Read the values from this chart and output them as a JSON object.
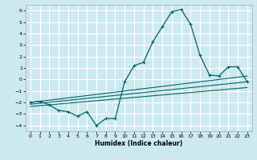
{
  "xlabel": "Humidex (Indice chaleur)",
  "ylabel": "",
  "xlim": [
    -0.5,
    23.5
  ],
  "ylim": [
    -4.5,
    6.5
  ],
  "yticks": [
    -4,
    -3,
    -2,
    -1,
    0,
    1,
    2,
    3,
    4,
    5,
    6
  ],
  "xticks": [
    0,
    1,
    2,
    3,
    4,
    5,
    6,
    7,
    8,
    9,
    10,
    11,
    12,
    13,
    14,
    15,
    16,
    17,
    18,
    19,
    20,
    21,
    22,
    23
  ],
  "bg_color": "#cce9f0",
  "grid_color": "#ffffff",
  "line_color": "#006666",
  "main_x": [
    0,
    1,
    2,
    3,
    4,
    5,
    6,
    7,
    8,
    9,
    10,
    11,
    12,
    13,
    14,
    15,
    16,
    17,
    18,
    19,
    20,
    21,
    22,
    23
  ],
  "main_y": [
    -2.0,
    -1.9,
    -2.2,
    -2.7,
    -2.8,
    -3.2,
    -2.8,
    -4.0,
    -3.4,
    -3.4,
    -0.2,
    1.2,
    1.5,
    3.3,
    4.6,
    5.9,
    6.1,
    4.8,
    2.1,
    0.4,
    0.3,
    1.1,
    1.1,
    -0.2
  ],
  "line1_x": [
    0,
    23
  ],
  "line1_y": [
    -2.15,
    -0.2
  ],
  "line2_x": [
    0,
    23
  ],
  "line2_y": [
    -2.0,
    0.3
  ],
  "line3_x": [
    0,
    23
  ],
  "line3_y": [
    -2.35,
    -0.7
  ]
}
